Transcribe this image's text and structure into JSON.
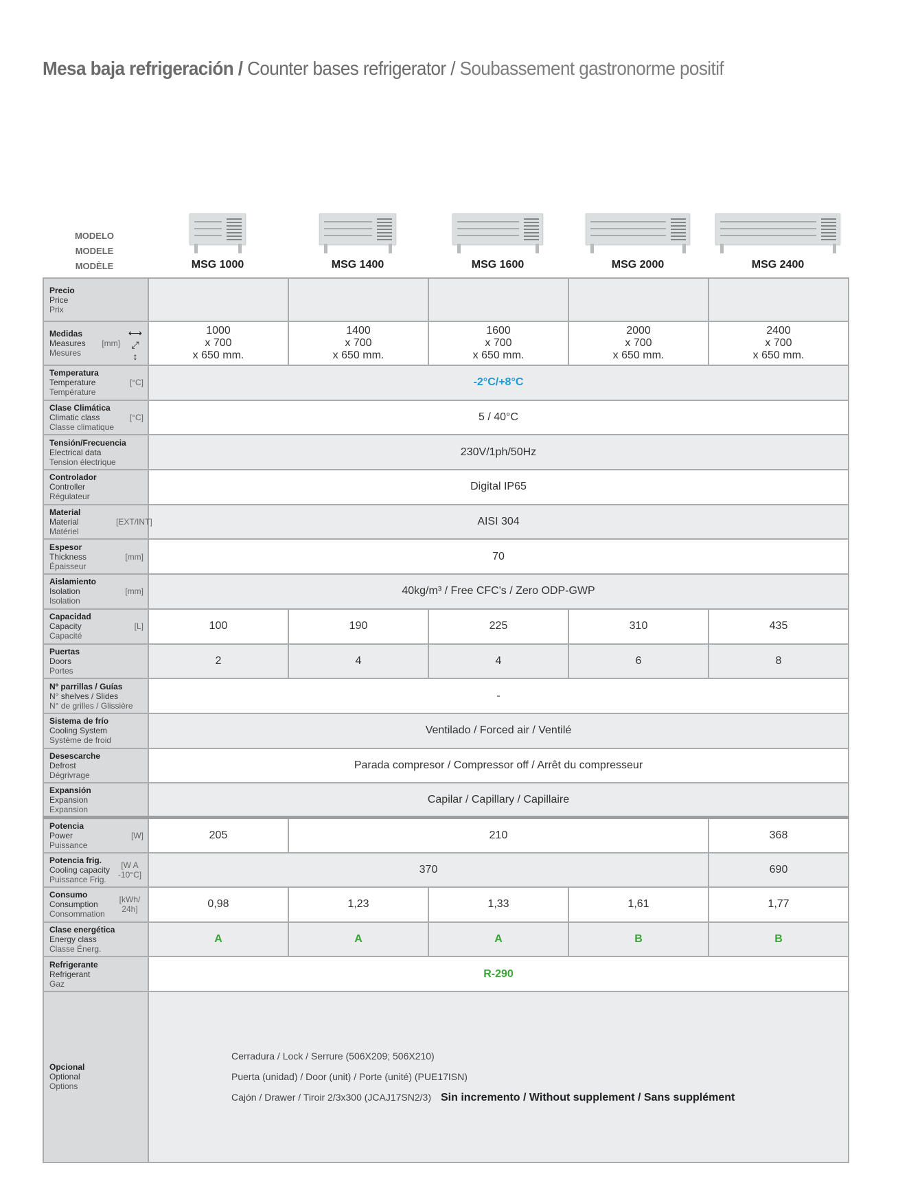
{
  "title": {
    "es": "Mesa baja refrigeración /",
    "en": " Counter bases refrigerator /",
    "fr": " Soubassement gastronorme positif"
  },
  "model_header": {
    "es": "MODELO",
    "en": "MODELE",
    "fr": "MODÈLE"
  },
  "models": [
    "MSG 1000",
    "MSG 1400",
    "MSG 1600",
    "MSG 2000",
    "MSG 2400"
  ],
  "colors": {
    "temperature": "#1a9bd7",
    "energy_refrigerant": "#3aa637",
    "label_bg": "#d9dadb",
    "row_gray": "#ebeced"
  },
  "rows": [
    {
      "id": "price",
      "es": "Precio",
      "en": "Price",
      "fr": "Prix",
      "unit": "",
      "cells": [
        {
          "text": ""
        },
        {
          "text": ""
        },
        {
          "text": ""
        },
        {
          "text": ""
        },
        {
          "text": ""
        }
      ]
    },
    {
      "id": "measures",
      "es": "Medidas",
      "en": "Measures",
      "fr": "Mesures",
      "unit": "[mm]",
      "icons": [
        "width-arrow-icon",
        "depth-arrow-icon",
        "height-arrow-icon"
      ],
      "cells": [
        {
          "lines": [
            "1000",
            "x 700",
            "x 650 mm."
          ]
        },
        {
          "lines": [
            "1400",
            "x 700",
            "x 650 mm."
          ]
        },
        {
          "lines": [
            "1600",
            "x 700",
            "x 650 mm."
          ]
        },
        {
          "lines": [
            "2000",
            "x 700",
            "x 650 mm."
          ]
        },
        {
          "lines": [
            "2400",
            "x 700",
            "x 650 mm."
          ]
        }
      ]
    },
    {
      "id": "temperature",
      "es": "Temperatura",
      "en": "Temperature",
      "fr": "Température",
      "unit": "[°C]",
      "cells": [
        {
          "text": "-2°C/+8°C",
          "span": 5,
          "style": "blue"
        }
      ]
    },
    {
      "id": "climatic-class",
      "es": "Clase Climática",
      "en": "Climatic class",
      "fr": "Classe climatique",
      "unit": "[°C]",
      "cells": [
        {
          "text": "5 / 40°C",
          "span": 5
        }
      ]
    },
    {
      "id": "electrical",
      "es": "Tensión/Frecuencia",
      "en": "Electrical data",
      "fr": "Tension électrique",
      "unit": "",
      "cells": [
        {
          "text": "230V/1ph/50Hz",
          "span": 5
        }
      ]
    },
    {
      "id": "controller",
      "es": "Controlador",
      "en": "Controller",
      "fr": "Régulateur",
      "unit": "",
      "cells": [
        {
          "text": "Digital IP65",
          "span": 5
        }
      ]
    },
    {
      "id": "material",
      "es": "Material",
      "en": "Material",
      "fr": "Matériel",
      "unit": "[EXT/INT]",
      "cells": [
        {
          "text": "AISI 304",
          "span": 5
        }
      ]
    },
    {
      "id": "thickness",
      "es": "Espesor",
      "en": "Thickness",
      "fr": "Épaisseur",
      "unit": "[mm]",
      "cells": [
        {
          "text": "70",
          "span": 5
        }
      ]
    },
    {
      "id": "isolation",
      "es": "Aislamiento",
      "en": "Isolation",
      "fr": "Isolation",
      "unit": "[mm]",
      "cells": [
        {
          "text": "40kg/m³   /   Free CFC's   /   Zero ODP-GWP",
          "span": 5
        }
      ]
    },
    {
      "id": "capacity",
      "es": "Capacidad",
      "en": "Capacity",
      "fr": "Capacité",
      "unit": "[L]",
      "cells": [
        {
          "text": "100"
        },
        {
          "text": "190"
        },
        {
          "text": "225"
        },
        {
          "text": "310"
        },
        {
          "text": "435"
        }
      ]
    },
    {
      "id": "doors",
      "es": "Puertas",
      "en": "Doors",
      "fr": "Portes",
      "unit": "",
      "cells": [
        {
          "text": "2"
        },
        {
          "text": "4"
        },
        {
          "text": "4"
        },
        {
          "text": "6"
        },
        {
          "text": "8"
        }
      ]
    },
    {
      "id": "shelves",
      "es": "Nº parrillas / Guías",
      "en": "N° shelves / Slides",
      "fr": "N° de grilles / Glissière",
      "unit": "",
      "cells": [
        {
          "text": "-",
          "span": 5
        }
      ]
    },
    {
      "id": "cooling-system",
      "es": "Sistema de frío",
      "en": "Cooling System",
      "fr": "Système de froid",
      "unit": "",
      "cells": [
        {
          "text": "Ventilado / Forced air / Ventilé",
          "span": 5
        }
      ]
    },
    {
      "id": "defrost",
      "es": "Desescarche",
      "en": "Defrost",
      "fr": "Dégrivrage",
      "unit": "",
      "cells": [
        {
          "text": "Parada compresor / Compressor off / Arrêt du compresseur",
          "span": 5
        }
      ]
    },
    {
      "id": "expansion",
      "es": "Expansión",
      "en": "Expansion",
      "fr": "Expansion",
      "unit": "",
      "cells": [
        {
          "text": "Capilar / Capillary / Capillaire",
          "span": 5
        }
      ]
    },
    {
      "id": "power",
      "es": "Potencia",
      "en": "Power",
      "fr": "Puissance",
      "unit": "[W]",
      "thick": true,
      "cells": [
        {
          "text": "205"
        },
        {
          "text": "210",
          "span": 3
        },
        {
          "text": "368"
        }
      ]
    },
    {
      "id": "cooling-capacity",
      "es": "Potencia frig.",
      "en": "Cooling capacity",
      "fr": "Puissance Frig.",
      "unit": "[W A -10°C]",
      "cells": [
        {
          "text": "370",
          "span": 4
        },
        {
          "text": "690"
        }
      ]
    },
    {
      "id": "consumption",
      "es": "Consumo",
      "en": "Consumption",
      "fr": "Consommation",
      "unit": "[kWh/ 24h]",
      "cells": [
        {
          "text": "0,98"
        },
        {
          "text": "1,23"
        },
        {
          "text": "1,33"
        },
        {
          "text": "1,61"
        },
        {
          "text": "1,77"
        }
      ]
    },
    {
      "id": "energy-class",
      "es": "Clase energética",
      "en": "Energy class",
      "fr": "Classe Énerg.",
      "unit": "",
      "cells": [
        {
          "text": "A",
          "style": "green"
        },
        {
          "text": "A",
          "style": "green"
        },
        {
          "text": "A",
          "style": "green"
        },
        {
          "text": "B",
          "style": "green"
        },
        {
          "text": "B",
          "style": "green"
        }
      ]
    },
    {
      "id": "refrigerant",
      "es": "Refrigerante",
      "en": "Refrigerant",
      "fr": "Gaz",
      "unit": "",
      "cells": [
        {
          "text": "R-290",
          "span": 5,
          "style": "green"
        }
      ]
    }
  ],
  "options": {
    "es": "Opcional",
    "en": "Optional",
    "fr": "Options",
    "items": [
      "Cerradura / Lock / Serrure  (506X209; 506X210)",
      "Puerta (unidad) / Door (unit) / Porte (unité) (PUE17ISN)",
      "Cajón / Drawer / Tiroir  2/3x300 (JCAJ17SN2/3)"
    ],
    "note": "Sin incremento /  Without supplement  / Sans supplément"
  }
}
